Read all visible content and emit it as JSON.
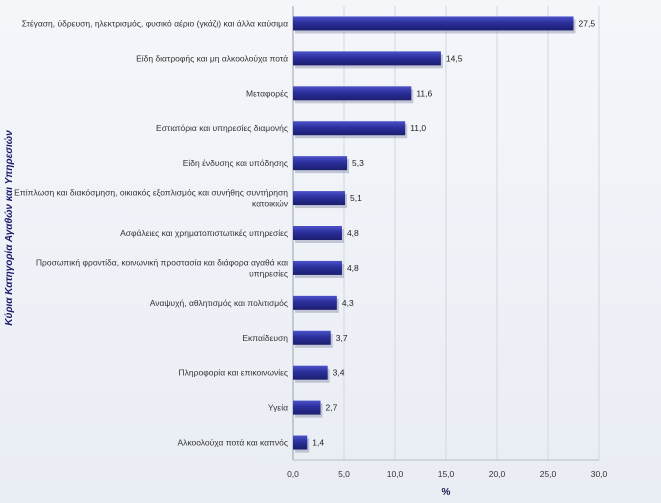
{
  "chart_data": {
    "type": "bar",
    "orientation": "horizontal",
    "title": "",
    "xlabel": "%",
    "ylabel": "Κύρια Κατηγορία Αγαθών και Υπηρεσιών",
    "xlim": [
      0,
      30
    ],
    "xticks": [
      "0,0",
      "5,0",
      "10,0",
      "15,0",
      "20,0",
      "25,0",
      "30,0"
    ],
    "xtick_values": [
      0,
      5,
      10,
      15,
      20,
      25,
      30
    ],
    "grid": true,
    "bar_color": "#2b2f9b",
    "categories": [
      [
        "Στέγαση, ύδρευση, ηλεκτρισμός, φυσικό αέριο (γκάζι) και άλλα καύσιμα"
      ],
      [
        "Είδη διατροφής και μη αλκοολούχα ποτά"
      ],
      [
        "Μεταφορές"
      ],
      [
        "Εστιατόρια και υπηρεσίες διαμονής"
      ],
      [
        "Είδη ένδυσης και υπόδησης"
      ],
      [
        "Επίπλωση και διακόσμηση, οικιακός εξοπλισμός και συνήθης συντήρηση",
        "κατοικιών"
      ],
      [
        "Ασφάλειες και χρηματοπιστωτικές υπηρεσίες"
      ],
      [
        "Προσωπική φροντίδα, κοινωνική προστασία και διάφορα αγαθά και",
        "υπηρεσίες"
      ],
      [
        "Αναψυχή, αθλητισμός και πολιτισμός"
      ],
      [
        "Εκπαίδευση"
      ],
      [
        "Πληροφορία και επικοινωνίες"
      ],
      [
        "Υγεία"
      ],
      [
        "Αλκοολούχα ποτά και καπνός"
      ]
    ],
    "values": [
      27.5,
      14.5,
      11.6,
      11.0,
      5.3,
      5.1,
      4.8,
      4.8,
      4.3,
      3.7,
      3.4,
      2.7,
      1.4
    ],
    "value_labels": [
      "27,5",
      "14,5",
      "11,6",
      "11,0",
      "5,3",
      "5,1",
      "4,8",
      "4,8",
      "4,3",
      "3,7",
      "3,4",
      "2,7",
      "1,4"
    ]
  }
}
